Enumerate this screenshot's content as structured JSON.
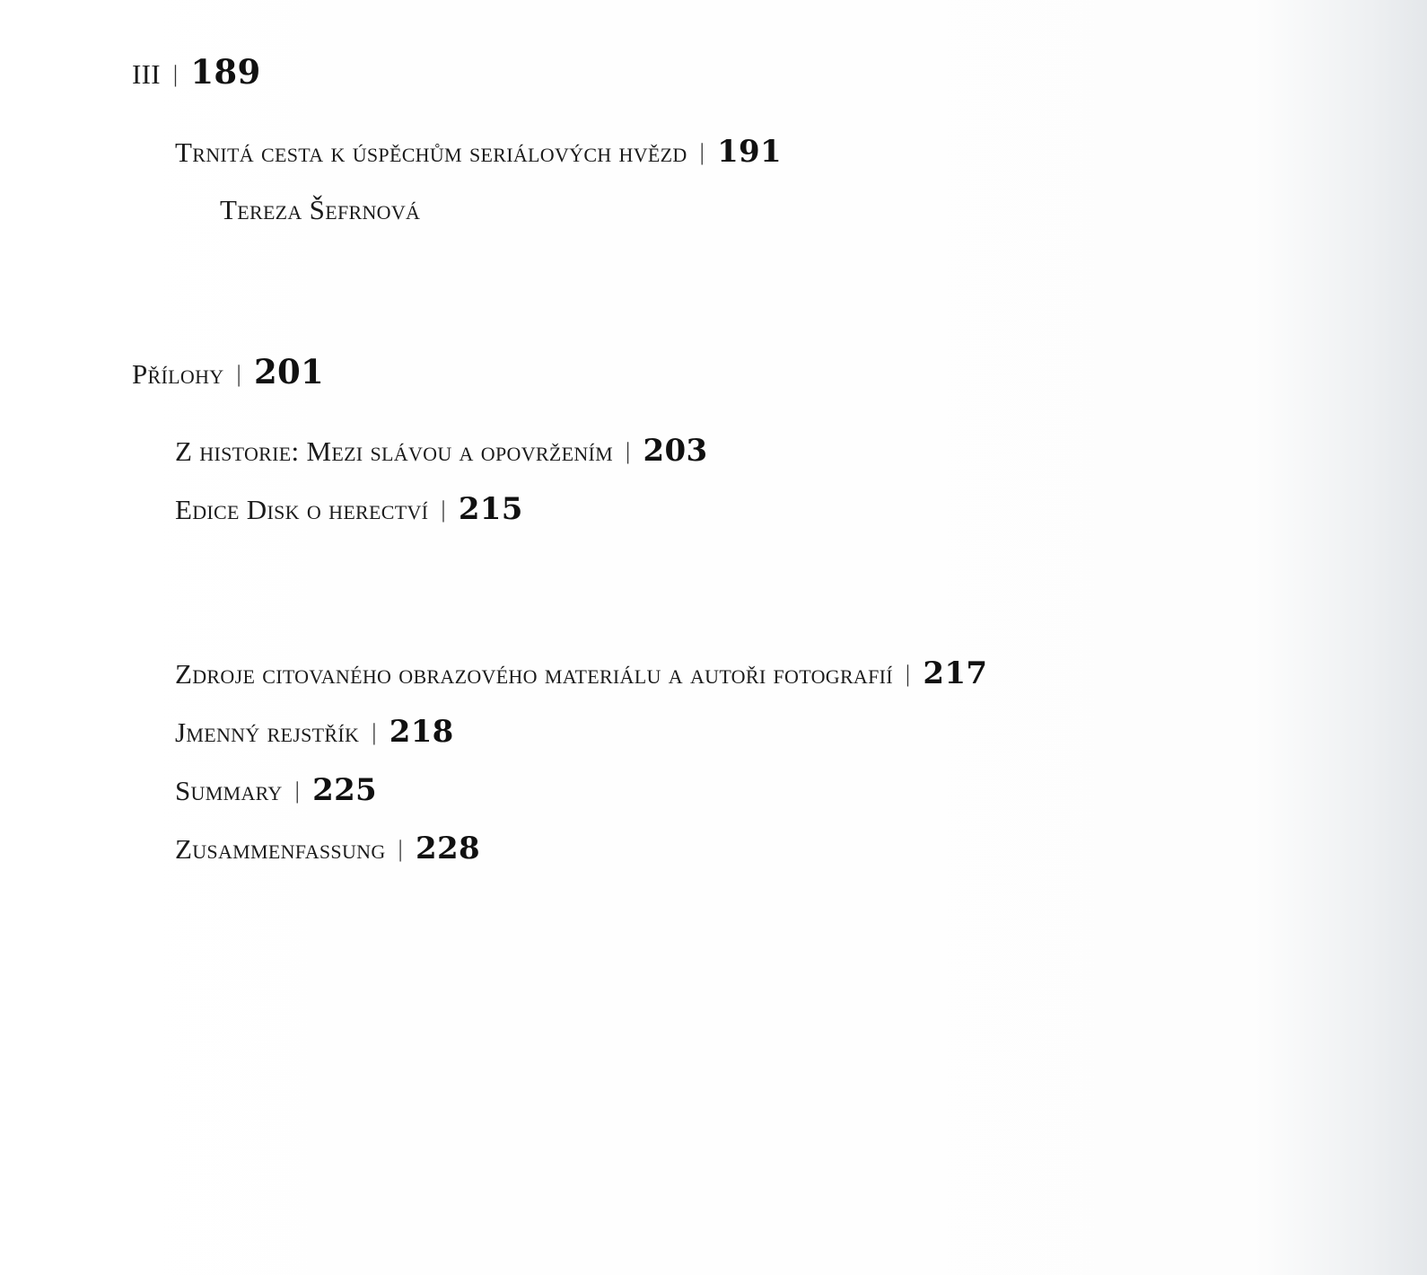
{
  "toc": {
    "entries": [
      {
        "title": "III",
        "page": "189"
      },
      {
        "title": "Trnitá cesta k úspěchům seriálových hvězd",
        "page": "191"
      },
      {
        "title": "Tereza Šefrnová",
        "page": null
      },
      {
        "title": "Přílohy",
        "page": "201"
      },
      {
        "title": "Z historie: Mezi slávou a opovržením",
        "page": "203"
      },
      {
        "title": "Edice Disk o herectví",
        "page": "215"
      },
      {
        "title": "Zdroje citovaného obrazového materiálu a autoři fotografií",
        "page": "217"
      },
      {
        "title": "Jmenný rejstřík",
        "page": "218"
      },
      {
        "title": "Summary",
        "page": "225"
      },
      {
        "title": "Zusammenfassung",
        "page": "228"
      }
    ],
    "separator": "|"
  }
}
